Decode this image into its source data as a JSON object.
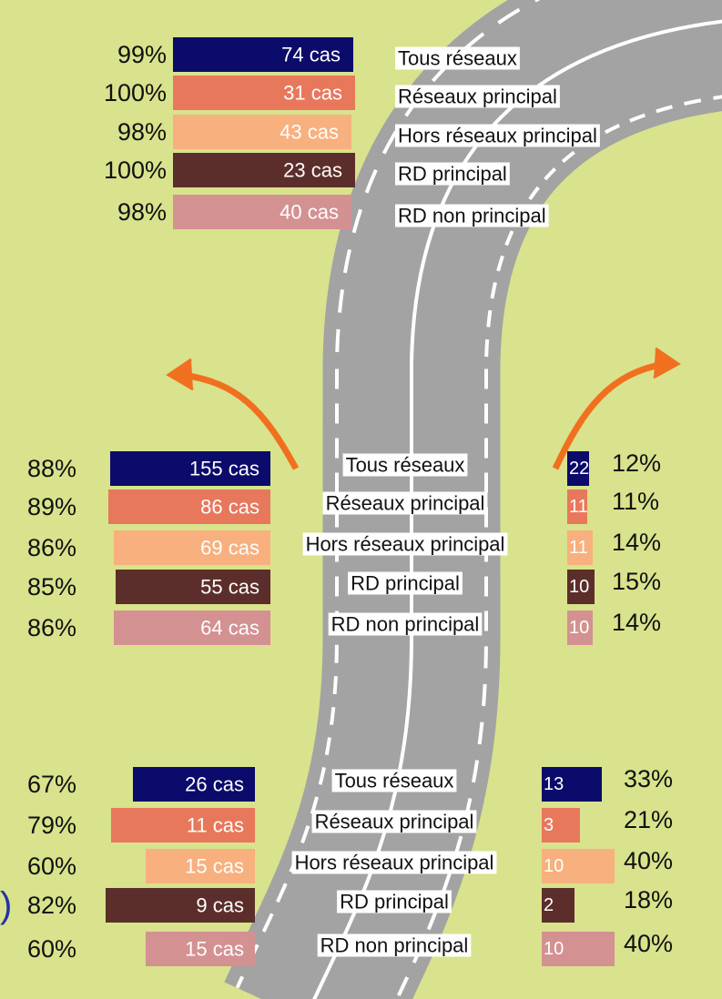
{
  "colors": [
    "#0b0b6b",
    "#e8785c",
    "#f8b07e",
    "#5c2e2b",
    "#d49192"
  ],
  "fragment": ")",
  "top": {
    "rows": [
      {
        "label": "Tous réseaux",
        "value": 99,
        "value_label": "99%",
        "cases": "74 cas"
      },
      {
        "label": "Réseaux principal",
        "value": 100,
        "value_label": "100%",
        "cases": "31 cas"
      },
      {
        "label": "Hors réseaux principal",
        "value": 98,
        "value_label": "98%",
        "cases": "43 cas"
      },
      {
        "label": "RD principal",
        "value": 100,
        "value_label": "100%",
        "cases": "23 cas"
      },
      {
        "label": "RD non principal",
        "value": 98,
        "value_label": "98%",
        "cases": "40 cas"
      }
    ]
  },
  "middle": {
    "rows": [
      {
        "label": "Tous réseaux",
        "left": {
          "value": 88,
          "value_label": "88%",
          "cases": "155 cas"
        },
        "right": {
          "value": 12,
          "value_label": "12%",
          "count": "22"
        }
      },
      {
        "label": "Réseaux principal",
        "left": {
          "value": 89,
          "value_label": "89%",
          "cases": "86 cas"
        },
        "right": {
          "value": 11,
          "value_label": "11%",
          "count": "11"
        }
      },
      {
        "label": "Hors réseaux principal",
        "left": {
          "value": 86,
          "value_label": "86%",
          "cases": "69 cas"
        },
        "right": {
          "value": 14,
          "value_label": "14%",
          "count": "11"
        }
      },
      {
        "label": "RD principal",
        "left": {
          "value": 85,
          "value_label": "85%",
          "cases": "55 cas"
        },
        "right": {
          "value": 15,
          "value_label": "15%",
          "count": "10"
        }
      },
      {
        "label": "RD non principal",
        "left": {
          "value": 86,
          "value_label": "86%",
          "cases": "64 cas"
        },
        "right": {
          "value": 14,
          "value_label": "14%",
          "count": "10"
        }
      }
    ]
  },
  "bottom": {
    "rows": [
      {
        "label": "Tous réseaux",
        "left": {
          "value": 67,
          "value_label": "67%",
          "cases": "26 cas"
        },
        "right": {
          "value": 33,
          "value_label": "33%",
          "count": "13"
        }
      },
      {
        "label": "Réseaux principal",
        "left": {
          "value": 79,
          "value_label": "79%",
          "cases": "11 cas"
        },
        "right": {
          "value": 21,
          "value_label": "21%",
          "count": "3"
        }
      },
      {
        "label": "Hors réseaux principal",
        "left": {
          "value": 60,
          "value_label": "60%",
          "cases": "15 cas"
        },
        "right": {
          "value": 40,
          "value_label": "40%",
          "count": "10"
        }
      },
      {
        "label": "RD principal",
        "left": {
          "value": 82,
          "value_label": "82%",
          "cases": "9 cas"
        },
        "right": {
          "value": 18,
          "value_label": "18%",
          "count": "2"
        }
      },
      {
        "label": "RD non principal",
        "left": {
          "value": 60,
          "value_label": "60%",
          "cases": "15 cas"
        },
        "right": {
          "value": 40,
          "value_label": "40%",
          "count": "10"
        }
      }
    ]
  }
}
